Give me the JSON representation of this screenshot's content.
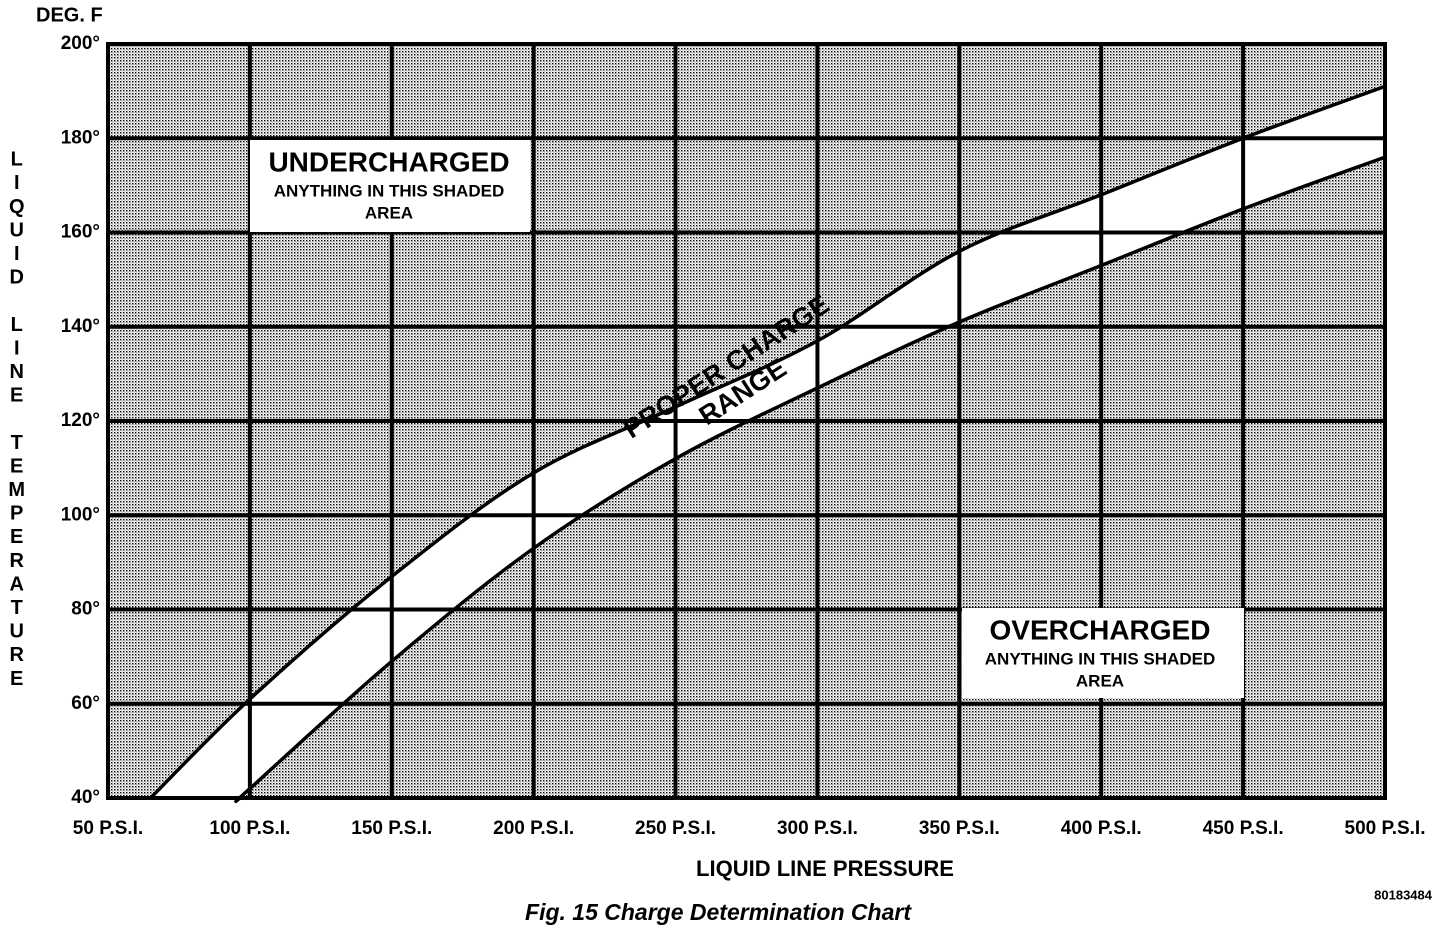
{
  "chart_data": {
    "type": "line",
    "title": "Fig. 15 Charge Determination Chart",
    "y_unit_label": "DEG. F",
    "ylabel": "LIQUID LINE TEMPERATURE",
    "xlabel": "LIQUID LINE PRESSURE",
    "figure_id": "80183484",
    "xlim": [
      50,
      500
    ],
    "ylim": [
      40,
      200
    ],
    "xticks": [
      {
        "value": 50,
        "label": "50 P.S.I."
      },
      {
        "value": 100,
        "label": "100 P.S.I."
      },
      {
        "value": 150,
        "label": "150 P.S.I."
      },
      {
        "value": 200,
        "label": "200 P.S.I."
      },
      {
        "value": 250,
        "label": "250 P.S.I."
      },
      {
        "value": 300,
        "label": "300 P.S.I."
      },
      {
        "value": 350,
        "label": "350 P.S.I."
      },
      {
        "value": 400,
        "label": "400 P.S.I."
      },
      {
        "value": 450,
        "label": "450 P.S.I."
      },
      {
        "value": 500,
        "label": "500 P.S.I."
      }
    ],
    "yticks": [
      {
        "value": 40,
        "label": "40°"
      },
      {
        "value": 60,
        "label": "60°"
      },
      {
        "value": 80,
        "label": "80°"
      },
      {
        "value": 100,
        "label": "100°"
      },
      {
        "value": 120,
        "label": "120°"
      },
      {
        "value": 140,
        "label": "140°"
      },
      {
        "value": 160,
        "label": "160°"
      },
      {
        "value": 180,
        "label": "180°"
      },
      {
        "value": 200,
        "label": "200°"
      }
    ],
    "grid": true,
    "color": "#000000",
    "series": [
      {
        "x": [
          65,
          100,
          150,
          200,
          250,
          300,
          350,
          400,
          450,
          500
        ],
        "values": [
          40,
          61,
          87,
          109,
          123,
          137,
          156,
          168,
          180,
          191
        ]
      },
      {
        "x": [
          96.5,
          100,
          150,
          200,
          250,
          300,
          350,
          400,
          450,
          500
        ],
        "values": [
          40,
          42,
          69,
          93,
          112,
          127,
          141,
          153,
          165,
          176
        ]
      }
    ],
    "annotations": [
      {
        "title": "UNDERCHARGED",
        "lines": [
          "ANYTHING IN THIS SHADED",
          "AREA"
        ]
      },
      {
        "title": "OVERCHARGED",
        "lines": [
          "ANYTHING IN THIS SHADED",
          "AREA"
        ]
      },
      {
        "lines": [
          "PROPER CHARGE",
          "RANGE"
        ]
      }
    ]
  }
}
